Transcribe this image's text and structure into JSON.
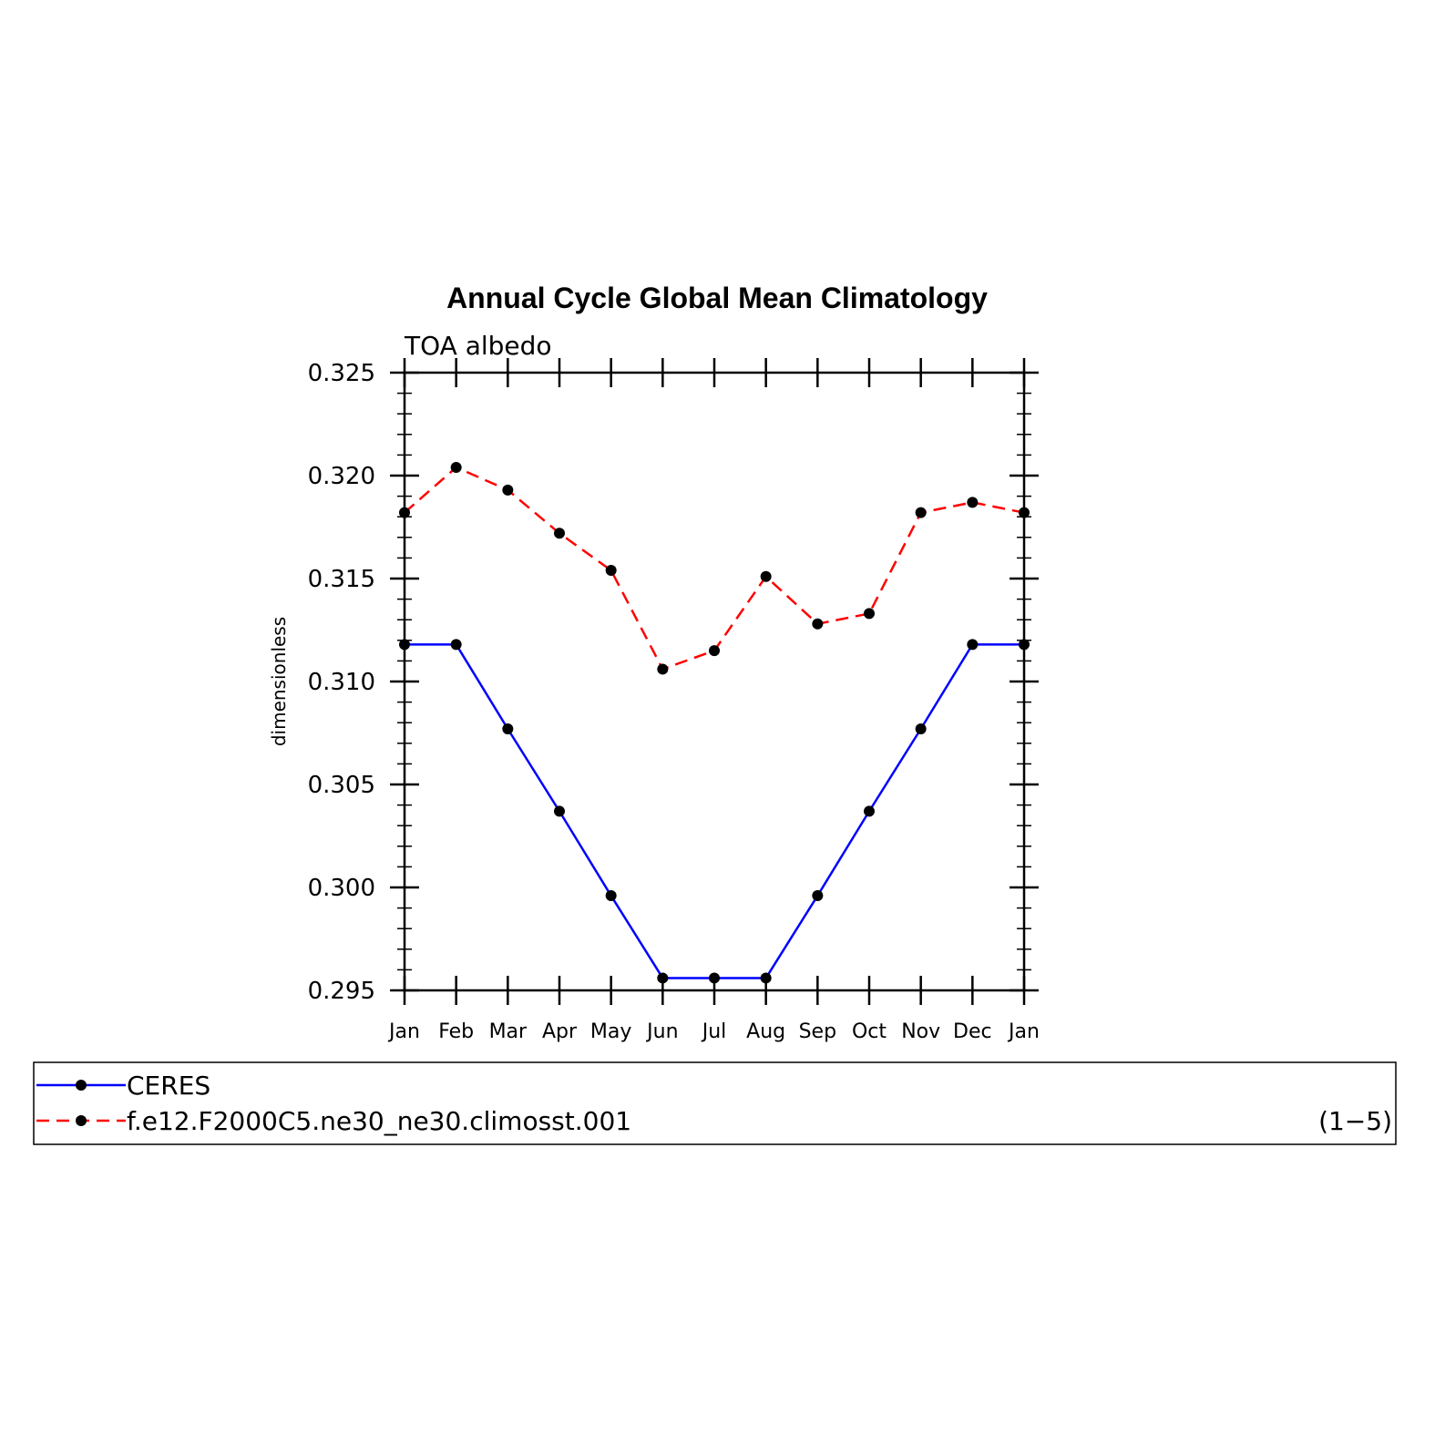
{
  "chart_data": {
    "type": "line",
    "title": "Annual Cycle Global Mean Climatology",
    "subtitle": "TOA albedo",
    "ylabel": "dimensionless",
    "xlabel": "",
    "categories": [
      "Jan",
      "Feb",
      "Mar",
      "Apr",
      "May",
      "Jun",
      "Jul",
      "Aug",
      "Sep",
      "Oct",
      "Nov",
      "Dec",
      "Jan"
    ],
    "ylim": [
      0.295,
      0.325
    ],
    "yticks": [
      "0.295",
      "0.300",
      "0.305",
      "0.310",
      "0.315",
      "0.320",
      "0.325"
    ],
    "series": [
      {
        "name": "CERES",
        "color": "#0000ff",
        "dash": "solid",
        "values": [
          0.3118,
          0.3118,
          0.3077,
          0.3037,
          0.2996,
          0.2956,
          0.2956,
          0.2956,
          0.2996,
          0.3037,
          0.3077,
          0.3118,
          0.3118
        ]
      },
      {
        "name": "f.e12.F2000C5.ne30_ne30.climosst.001",
        "color": "#ff0000",
        "dash": "dashed",
        "values": [
          0.3182,
          0.3204,
          0.3193,
          0.3172,
          0.3154,
          0.3106,
          0.3115,
          0.3151,
          0.3128,
          0.3133,
          0.3182,
          0.3187,
          0.3182
        ]
      }
    ],
    "legend": {
      "placement": "below",
      "note": "(1−5)"
    },
    "grid": false
  }
}
